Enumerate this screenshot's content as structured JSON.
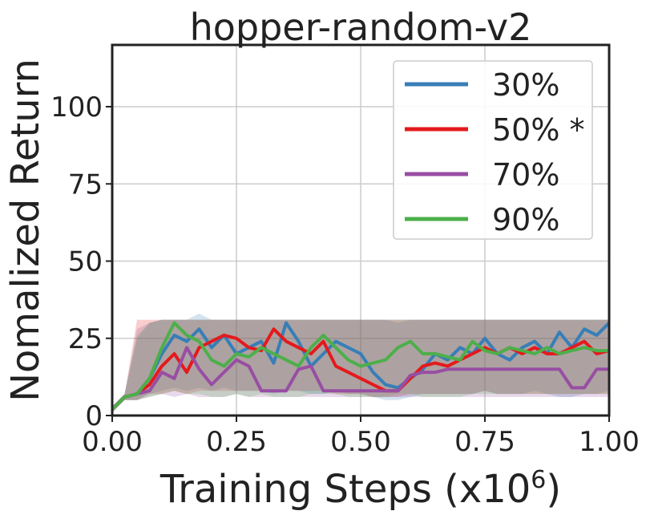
{
  "chart_data": {
    "type": "line",
    "title": "hopper-random-v2",
    "xlabel": "Training Steps (x10",
    "xlabel_exponent": "6",
    "xlabel_close": ")",
    "ylabel": "Nomalized Return",
    "xlim": [
      0.0,
      1.0
    ],
    "ylim": [
      0,
      120
    ],
    "xticks": [
      "0.00",
      "0.25",
      "0.50",
      "0.75",
      "1.00"
    ],
    "yticks": [
      "0",
      "25",
      "50",
      "75",
      "100"
    ],
    "grid": true,
    "legend_position": "top-right",
    "x": [
      0.0,
      0.025,
      0.05,
      0.075,
      0.1,
      0.125,
      0.15,
      0.175,
      0.2,
      0.225,
      0.25,
      0.275,
      0.3,
      0.325,
      0.35,
      0.375,
      0.4,
      0.425,
      0.45,
      0.475,
      0.5,
      0.525,
      0.55,
      0.575,
      0.6,
      0.625,
      0.65,
      0.675,
      0.7,
      0.725,
      0.75,
      0.775,
      0.8,
      0.825,
      0.85,
      0.875,
      0.9,
      0.925,
      0.95,
      0.975,
      1.0
    ],
    "series": [
      {
        "name": "30%",
        "color": "#377eb8",
        "values": [
          2,
          6,
          7,
          12,
          20,
          26,
          24,
          28,
          22,
          26,
          20,
          22,
          24,
          17,
          30,
          24,
          16,
          20,
          24,
          22,
          20,
          14,
          10,
          9,
          12,
          15,
          20,
          18,
          22,
          20,
          25,
          20,
          18,
          22,
          24,
          20,
          27,
          22,
          28,
          26,
          30
        ],
        "lower": [
          1,
          5,
          5,
          7,
          8,
          9,
          8,
          9,
          8,
          9,
          8,
          8,
          8,
          7,
          8,
          8,
          7,
          7,
          8,
          7,
          7,
          6,
          5,
          5,
          6,
          7,
          7,
          7,
          7,
          7,
          8,
          7,
          7,
          7,
          8,
          7,
          6,
          6,
          7,
          7,
          8
        ],
        "upper": [
          3,
          7,
          25,
          30,
          31,
          31,
          31,
          33,
          31,
          31,
          31,
          31,
          31,
          31,
          31,
          31,
          31,
          31,
          31,
          31,
          31,
          31,
          31,
          30,
          31,
          31,
          31,
          31,
          31,
          31,
          31,
          31,
          31,
          31,
          31,
          31,
          31,
          31,
          31,
          31,
          31
        ]
      },
      {
        "name": "50% *",
        "color": "#e41a1c",
        "values": [
          2,
          6,
          7,
          10,
          16,
          20,
          14,
          22,
          24,
          26,
          25,
          22,
          21,
          28,
          24,
          22,
          20,
          24,
          16,
          14,
          12,
          10,
          8,
          8,
          12,
          16,
          17,
          16,
          18,
          20,
          22,
          20,
          22,
          20,
          22,
          20,
          20,
          22,
          24,
          20,
          21
        ],
        "lower": [
          1,
          5,
          5,
          7,
          7,
          8,
          7,
          8,
          8,
          8,
          8,
          8,
          8,
          8,
          8,
          8,
          8,
          8,
          7,
          7,
          7,
          6,
          6,
          6,
          7,
          7,
          7,
          7,
          7,
          7,
          8,
          7,
          7,
          7,
          7,
          7,
          7,
          7,
          7,
          7,
          7
        ],
        "upper": [
          3,
          7,
          31,
          31,
          31,
          31,
          31,
          31,
          31,
          31,
          31,
          31,
          31,
          31,
          31,
          31,
          31,
          31,
          31,
          31,
          31,
          31,
          31,
          31,
          31,
          31,
          31,
          31,
          31,
          31,
          31,
          31,
          31,
          31,
          31,
          31,
          31,
          31,
          31,
          31,
          31
        ]
      },
      {
        "name": "70%",
        "color": "#984ea3",
        "values": [
          2,
          6,
          7,
          8,
          14,
          12,
          22,
          15,
          10,
          14,
          18,
          16,
          8,
          8,
          8,
          15,
          16,
          8,
          8,
          8,
          8,
          8,
          8,
          8,
          13,
          14,
          14,
          15,
          15,
          15,
          15,
          15,
          15,
          15,
          15,
          15,
          15,
          9,
          9,
          15,
          15
        ],
        "lower": [
          1,
          5,
          5,
          6,
          7,
          6,
          7,
          6,
          6,
          6,
          7,
          6,
          6,
          6,
          6,
          6,
          6,
          6,
          6,
          6,
          6,
          6,
          6,
          6,
          6,
          6,
          6,
          6,
          6,
          6,
          6,
          6,
          6,
          6,
          6,
          6,
          6,
          6,
          6,
          6,
          6
        ],
        "upper": [
          3,
          7,
          28,
          30,
          31,
          31,
          31,
          31,
          31,
          31,
          31,
          31,
          31,
          31,
          31,
          31,
          31,
          31,
          31,
          31,
          31,
          31,
          31,
          31,
          31,
          31,
          31,
          31,
          31,
          31,
          31,
          31,
          31,
          31,
          31,
          31,
          31,
          31,
          31,
          31,
          31
        ]
      },
      {
        "name": "90%",
        "color": "#4daf4a",
        "values": [
          2,
          6,
          7,
          12,
          22,
          30,
          26,
          24,
          18,
          16,
          20,
          19,
          22,
          20,
          18,
          16,
          22,
          26,
          22,
          18,
          16,
          17,
          18,
          22,
          24,
          20,
          20,
          19,
          18,
          24,
          21,
          20,
          22,
          21,
          20,
          22,
          20,
          21,
          22,
          21,
          21
        ],
        "lower": [
          1,
          5,
          5,
          6,
          7,
          8,
          7,
          7,
          6,
          6,
          7,
          6,
          7,
          6,
          6,
          6,
          7,
          7,
          7,
          6,
          6,
          6,
          6,
          7,
          7,
          6,
          6,
          6,
          6,
          7,
          7,
          7,
          7,
          7,
          7,
          7,
          7,
          7,
          7,
          7,
          7
        ],
        "upper": [
          3,
          7,
          26,
          30,
          31,
          31,
          31,
          31,
          31,
          31,
          31,
          31,
          31,
          31,
          31,
          31,
          31,
          31,
          31,
          31,
          31,
          31,
          31,
          31,
          31,
          31,
          31,
          31,
          31,
          31,
          31,
          31,
          31,
          31,
          31,
          31,
          31,
          31,
          31,
          31,
          31
        ]
      }
    ]
  }
}
